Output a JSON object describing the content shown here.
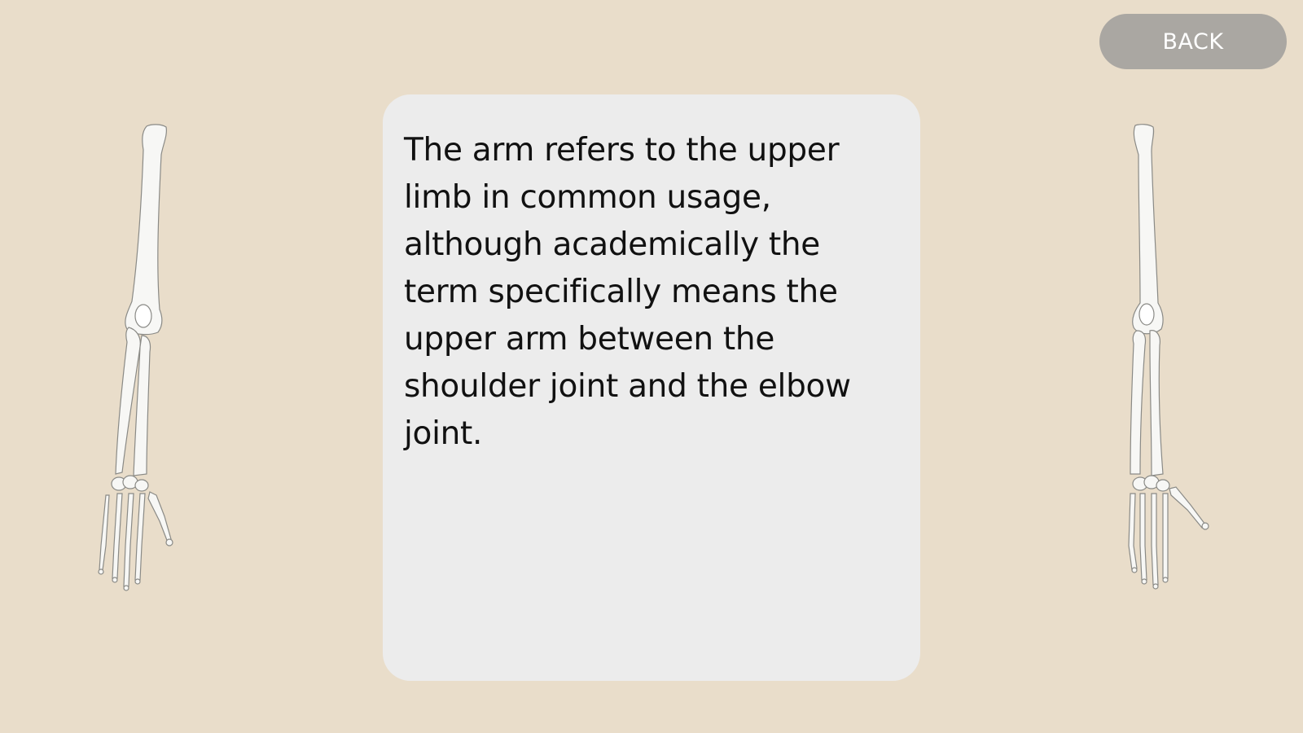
{
  "toolbar": {
    "back_label": "BACK"
  },
  "content": {
    "description": "The arm refers to the upper limb in common usage, although academically the term specifically means the upper arm between the shoulder joint and the elbow joint."
  },
  "illustrations": {
    "left": "arm-skeleton-icon",
    "right": "arm-skeleton-icon"
  },
  "colors": {
    "background": "#e9ddca",
    "card": "#ececec",
    "button": "#aaa7a2",
    "button_text": "#ffffff",
    "text": "#111111"
  }
}
